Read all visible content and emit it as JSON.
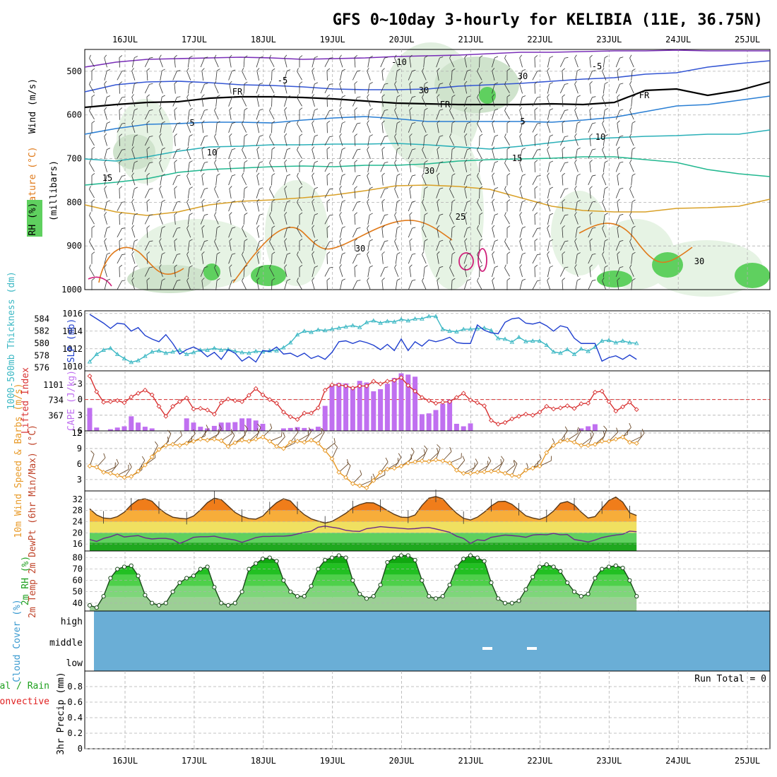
{
  "title": "GFS 0~10day 3-hourly for KELIBIA (11E, 36.75N)",
  "dates": [
    "16JUL",
    "17JUL",
    "18JUL",
    "19JUL",
    "20JUL",
    "21JUL",
    "22JUL",
    "23JUL",
    "24JUL",
    "25JUL"
  ],
  "colors": {
    "frame": "#000000",
    "grid": "#b0b0b0",
    "slp": "#1f3fcf",
    "thickness": "#3cb8c4",
    "lifted": "#d83030",
    "cape": "#c070f0",
    "wind_speed": "#e89a28",
    "barb": "#6b4a2a",
    "t2m_fill": "#f07d1a",
    "dew_line": "#6b2c8a",
    "rh_fill": "#33cc33",
    "cloud": "#6aaed6",
    "precip_total": "#1ea01e",
    "precip_conv": "#e02020"
  },
  "upper_panel": {
    "ylabel_wind": "Wind (m/s)",
    "ylabel_temp": "Temperature (°C)",
    "ylabel_rh": "RH (%)",
    "ylabel_units": "(millibars)",
    "yticks": [
      "500",
      "600",
      "700",
      "800",
      "900",
      "1000"
    ],
    "contour_labels": [
      "-10",
      "-5",
      "-5",
      "FR",
      "FR",
      "FR",
      "5",
      "5",
      "10",
      "10",
      "15",
      "15",
      "25",
      "30",
      "30",
      "30",
      "30",
      "30"
    ]
  },
  "chart_data": [
    {
      "type": "line",
      "name": "slp-thickness",
      "y1label": "SLP (mb)",
      "y2label": "1000-500mb Thickness (dm)",
      "y1ticks": [
        "1010",
        "1012",
        "1014",
        "1016"
      ],
      "y2ticks": [
        "576",
        "578",
        "580",
        "582",
        "584"
      ],
      "y1lim": [
        1009.5,
        1016.3
      ],
      "y2lim": [
        575.5,
        585.3
      ],
      "x": [
        0,
        1,
        2,
        3,
        4,
        5,
        6,
        7,
        8,
        9,
        10,
        11,
        12,
        13,
        14,
        15,
        16,
        17,
        18,
        19,
        20,
        21,
        22,
        23,
        24,
        25,
        26,
        27,
        28,
        29,
        30,
        31,
        32,
        33,
        34,
        35,
        36,
        37,
        38,
        39,
        40,
        41,
        42,
        43,
        44,
        45,
        46,
        47,
        48,
        49,
        50,
        51,
        52,
        53,
        54,
        55,
        56,
        57,
        58,
        59,
        60,
        61,
        62,
        63,
        64,
        65,
        66,
        67,
        68,
        69,
        70,
        71,
        72,
        73,
        74,
        75,
        76,
        77,
        78,
        79
      ],
      "series": [
        {
          "name": "SLP (mb)",
          "values": [
            1015.9,
            1015.4,
            1014.9,
            1014.3,
            1014.9,
            1014.8,
            1014.0,
            1014.4,
            1013.5,
            1013.1,
            1012.8,
            1013.6,
            1012.6,
            1011.4,
            1011.9,
            1012.2,
            1011.8,
            1011.1,
            1011.6,
            1010.8,
            1011.9,
            1011.5,
            1010.6,
            1011.1,
            1010.5,
            1011.8,
            1011.7,
            1012.2,
            1011.4,
            1011.5,
            1011.1,
            1011.5,
            1010.9,
            1011.2,
            1010.8,
            1011.6,
            1012.8,
            1012.9,
            1012.6,
            1012.9,
            1012.7,
            1012.4,
            1011.9,
            1012.5,
            1011.8,
            1013.1,
            1011.8,
            1012.8,
            1012.3,
            1013.0,
            1012.8,
            1013.0,
            1013.3,
            1012.7,
            1012.6,
            1012.6,
            1014.7,
            1014.1,
            1013.8,
            1013.7,
            1015.0,
            1015.4,
            1015.5,
            1014.9,
            1014.8,
            1015.0,
            1014.6,
            1014.0,
            1014.6,
            1014.4,
            1013.2,
            1012.6,
            1012.6,
            1012.6,
            1010.6,
            1011.0,
            1011.2,
            1010.8,
            1011.3,
            1010.8
          ]
        },
        {
          "name": "1000-500mb Thickness (dm)",
          "values": [
            577.0,
            578.2,
            578.9,
            579.2,
            578.2,
            577.5,
            576.9,
            577.2,
            577.9,
            578.6,
            578.8,
            578.4,
            578.6,
            578.9,
            578.2,
            578.5,
            578.9,
            578.9,
            579.2,
            578.9,
            579.0,
            578.7,
            578.5,
            578.4,
            578.7,
            578.6,
            578.8,
            578.8,
            579.3,
            580.1,
            581.4,
            582.0,
            581.8,
            582.2,
            582.1,
            582.3,
            582.5,
            582.7,
            582.9,
            582.6,
            583.4,
            583.7,
            583.3,
            583.6,
            583.5,
            583.9,
            583.7,
            584.0,
            584.0,
            584.4,
            584.4,
            582.3,
            582.0,
            581.9,
            582.3,
            582.3,
            582.4,
            582.5,
            582.1,
            580.8,
            580.7,
            580.2,
            581.0,
            580.3,
            580.4,
            580.4,
            579.7,
            578.6,
            578.4,
            579.0,
            578.2,
            579.1,
            578.7,
            579.4,
            580.4,
            580.5,
            580.1,
            580.4,
            580.1,
            580.0
          ]
        }
      ]
    },
    {
      "type": "bar",
      "name": "cape-lifted-index",
      "y1label": "Lifted Index",
      "y2label": "CAPE (J/kg)",
      "y1ticks": [
        "-3",
        "0",
        "3",
        "6"
      ],
      "y2ticks": [
        "367",
        "734",
        "1101"
      ],
      "y1lim": [
        6,
        -5.5
      ],
      "y2lim": [
        0,
        1440
      ],
      "series": [
        {
          "name": "CAPE (J/kg)",
          "values": [
            550,
            80,
            0,
            40,
            80,
            110,
            350,
            200,
            100,
            60,
            0,
            0,
            0,
            0,
            300,
            200,
            100,
            60,
            120,
            200,
            200,
            210,
            300,
            300,
            250,
            170,
            0,
            0,
            60,
            70,
            90,
            70,
            50,
            100,
            600,
            1101,
            1150,
            1140,
            1060,
            1200,
            1160,
            950,
            1000,
            1130,
            1270,
            1380,
            1350,
            1300,
            400,
            420,
            500,
            650,
            750,
            170,
            110,
            180,
            0,
            0,
            0,
            0,
            0,
            0,
            0,
            0,
            0,
            0,
            0,
            0,
            0,
            0,
            0,
            60,
            110,
            160,
            0,
            0,
            0,
            0,
            0,
            0
          ]
        },
        {
          "name": "Lifted Index",
          "values": [
            -4.5,
            -1.5,
            0.5,
            0.4,
            0.2,
            0.6,
            -0.5,
            -1.2,
            -1.8,
            -0.9,
            1.3,
            3.2,
            1.3,
            0.4,
            -0.3,
            1.8,
            1.7,
            2.0,
            2.8,
            0.6,
            -0.1,
            0.2,
            0.4,
            -0.8,
            -2.1,
            -0.9,
            0.0,
            0.7,
            2.4,
            3.3,
            3.8,
            2.6,
            2.6,
            1.6,
            -1.8,
            -2.8,
            -2.8,
            -2.6,
            -2.2,
            -2.6,
            -2.6,
            -3.5,
            -3.0,
            -3.5,
            -3.7,
            -4.2,
            -2.7,
            -1.6,
            -0.4,
            0.2,
            0.7,
            0.5,
            0.4,
            -0.4,
            -1.2,
            0.1,
            0.6,
            1.2,
            4.0,
            4.7,
            4.4,
            3.7,
            3.2,
            2.8,
            3.0,
            2.4,
            1.3,
            1.8,
            1.6,
            1.2,
            1.7,
            0.8,
            0.7,
            -1.4,
            -1.6,
            0.4,
            2.2,
            1.4,
            0.5,
            1.9
          ]
        }
      ]
    },
    {
      "type": "line",
      "name": "wind-10m",
      "ylabel": "10m Wind Speed & Barbs (m/s)",
      "yticks": [
        "3",
        "6",
        "9",
        "12"
      ],
      "ylim": [
        0.8,
        12.4
      ],
      "series": [
        {
          "name": "Speed",
          "values": [
            5.6,
            5.4,
            4.4,
            4.2,
            3.8,
            3.4,
            3.6,
            4.6,
            5.8,
            7.4,
            8.8,
            9.6,
            9.8,
            9.6,
            10.0,
            10.4,
            10.8,
            10.6,
            10.8,
            10.5,
            9.4,
            10.1,
            10.6,
            10.4,
            10.8,
            11.2,
            10.4,
            9.4,
            9.0,
            10.2,
            10.4,
            10.2,
            10.6,
            10.0,
            8.6,
            7.0,
            4.4,
            3.4,
            2.2,
            1.8,
            1.4,
            2.8,
            4.4,
            5.0,
            5.2,
            5.6,
            6.2,
            6.4,
            6.6,
            6.5,
            6.8,
            6.6,
            6.2,
            4.8,
            4.2,
            4.2,
            4.4,
            4.5,
            4.6,
            4.6,
            4.2,
            3.8,
            3.6,
            4.8,
            5.2,
            5.6,
            8.2,
            9.6,
            10.4,
            10.6,
            10.2,
            9.6,
            9.6,
            9.8,
            10.4,
            10.4,
            10.8,
            11.2,
            10.2,
            10.0
          ]
        }
      ]
    },
    {
      "type": "area",
      "name": "t2m-dewpoint",
      "ylabel": "2m Temp 2m DewPt (6hr Min/Max) (°C)",
      "yticks": [
        "16",
        "20",
        "24",
        "28",
        "32"
      ],
      "ylim": [
        13.5,
        35
      ],
      "series": [
        {
          "name": "2m Temp",
          "values": [
            28.6,
            26.4,
            25.3,
            25.1,
            25.8,
            27.4,
            30.0,
            31.8,
            32.2,
            31.3,
            28.8,
            26.9,
            25.6,
            25.2,
            25.0,
            26.0,
            28.2,
            30.8,
            32.4,
            31.9,
            29.6,
            27.3,
            25.9,
            25.1,
            24.9,
            26.0,
            28.6,
            30.8,
            32.2,
            31.4,
            28.7,
            26.5,
            25.0,
            24.2,
            23.5,
            24.1,
            25.5,
            27.0,
            29.0,
            30.1,
            30.8,
            30.7,
            29.5,
            28.0,
            26.6,
            25.6,
            25.5,
            26.4,
            29.8,
            32.4,
            33.0,
            32.2,
            29.4,
            27.0,
            25.2,
            24.6,
            25.6,
            27.4,
            29.6,
            31.2,
            31.3,
            30.2,
            28.2,
            26.1,
            25.3,
            24.8,
            25.8,
            27.8,
            30.6,
            31.2,
            30.0,
            27.4,
            25.3,
            25.8,
            28.8,
            31.6,
            32.8,
            31.0,
            27.2,
            26.2
          ]
        },
        {
          "name": "2m DewPt",
          "values": [
            17.6,
            16.9,
            18.0,
            18.6,
            19.5,
            18.5,
            18.8,
            19.0,
            18.2,
            17.8,
            18.0,
            18.0,
            17.6,
            16.2,
            17.2,
            18.4,
            18.6,
            18.6,
            18.8,
            18.2,
            17.8,
            17.4,
            16.6,
            17.4,
            18.3,
            18.7,
            18.7,
            18.8,
            18.8,
            19.0,
            19.6,
            20.2,
            20.6,
            22.0,
            22.4,
            22.0,
            21.6,
            20.9,
            20.6,
            20.5,
            21.5,
            21.8,
            22.2,
            22.0,
            21.8,
            21.6,
            21.4,
            21.5,
            21.8,
            21.9,
            21.4,
            20.8,
            20.2,
            18.8,
            18.0,
            16.2,
            17.5,
            17.2,
            18.4,
            18.8,
            19.2,
            19.0,
            18.8,
            18.4,
            19.2,
            19.4,
            19.3,
            19.8,
            19.3,
            19.4,
            17.6,
            17.2,
            16.7,
            17.4,
            18.3,
            18.8,
            19.2,
            19.5,
            20.6,
            20.4
          ]
        }
      ]
    },
    {
      "type": "area",
      "name": "rh-2m",
      "ylabel": "2m RH (%)",
      "yticks": [
        "40",
        "50",
        "60",
        "70",
        "80"
      ],
      "ylim": [
        33,
        86
      ],
      "series": [
        {
          "name": "2m RH",
          "values": [
            38,
            36,
            46,
            62,
            70,
            72,
            73,
            64,
            47,
            40,
            38,
            40,
            50,
            58,
            62,
            64,
            70,
            72,
            54,
            40,
            38,
            40,
            50,
            70,
            75,
            79,
            80,
            77,
            60,
            50,
            46,
            46,
            55,
            70,
            78,
            80,
            82,
            80,
            60,
            48,
            44,
            46,
            56,
            76,
            80,
            82,
            82,
            78,
            60,
            46,
            44,
            46,
            56,
            72,
            79,
            82,
            80,
            77,
            58,
            44,
            40,
            40,
            42,
            52,
            63,
            72,
            74,
            72,
            68,
            58,
            50,
            46,
            48,
            62,
            70,
            72,
            73,
            71,
            60,
            46
          ]
        }
      ]
    },
    {
      "type": "heatmap",
      "name": "cloud-cover",
      "ylabel": "Cloud Cover (%)",
      "levels": [
        "high",
        "middle",
        "low"
      ]
    },
    {
      "type": "bar",
      "name": "precip-3hr",
      "ylabel": "3hr Precip (mm)",
      "legend": [
        "Total / Rain",
        "Convective"
      ],
      "yticks": [
        "0",
        "0.2",
        "0.4",
        "0.6",
        "0.8"
      ],
      "ylim": [
        0,
        1.0
      ],
      "run_total": "Run Total = 0",
      "series": [
        {
          "name": "Total / Rain",
          "values": []
        },
        {
          "name": "Convective",
          "values": []
        }
      ]
    }
  ]
}
